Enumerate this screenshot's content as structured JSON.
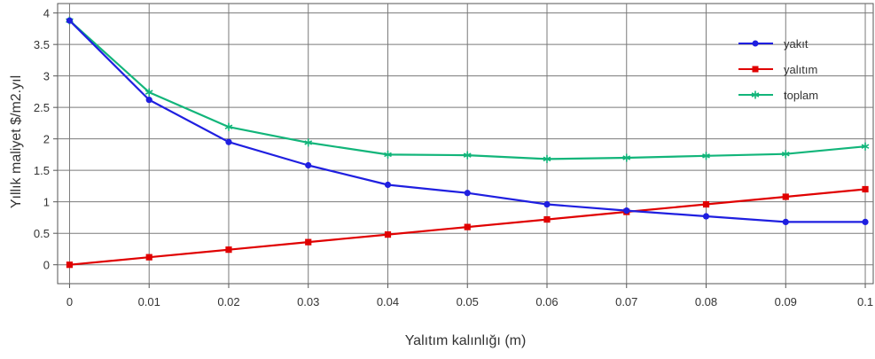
{
  "chart_data": {
    "type": "line",
    "title": "",
    "xlabel": "Yalıtım kalınlığı (m)",
    "ylabel": "Yıllık maliyet $/m2.yıl",
    "x": [
      0,
      0.01,
      0.02,
      0.03,
      0.04,
      0.05,
      0.06,
      0.07,
      0.08,
      0.09,
      0.1
    ],
    "x_tick_labels": [
      "0",
      "0.01",
      "0.02",
      "0.03",
      "0.04",
      "0.05",
      "0.06",
      "0.07",
      "0.08",
      "0.09",
      "0.1"
    ],
    "y_ticks": [
      0,
      0.5,
      1,
      1.5,
      2,
      2.5,
      3,
      3.5,
      4
    ],
    "y_tick_labels": [
      "0",
      "0.5",
      "1",
      "1.5",
      "2",
      "2.5",
      "3",
      "3.5",
      "4"
    ],
    "xlim": [
      -0.0015,
      0.101
    ],
    "ylim": [
      -0.3,
      4.15
    ],
    "grid": true,
    "legend_position": "top-right",
    "series": [
      {
        "name": "yakıt",
        "color": "#1f1fe0",
        "marker": "circle",
        "values": [
          3.88,
          2.62,
          1.95,
          1.58,
          1.27,
          1.14,
          0.96,
          0.86,
          0.77,
          0.68,
          0.68
        ]
      },
      {
        "name": "yalıtım",
        "color": "#e00000",
        "marker": "square",
        "values": [
          0.0,
          0.12,
          0.24,
          0.36,
          0.48,
          0.6,
          0.72,
          0.84,
          0.96,
          1.08,
          1.2
        ]
      },
      {
        "name": "toplam",
        "color": "#12b57a",
        "marker": "star",
        "values": [
          3.88,
          2.74,
          2.19,
          1.94,
          1.75,
          1.74,
          1.68,
          1.7,
          1.73,
          1.76,
          1.88
        ]
      }
    ]
  }
}
